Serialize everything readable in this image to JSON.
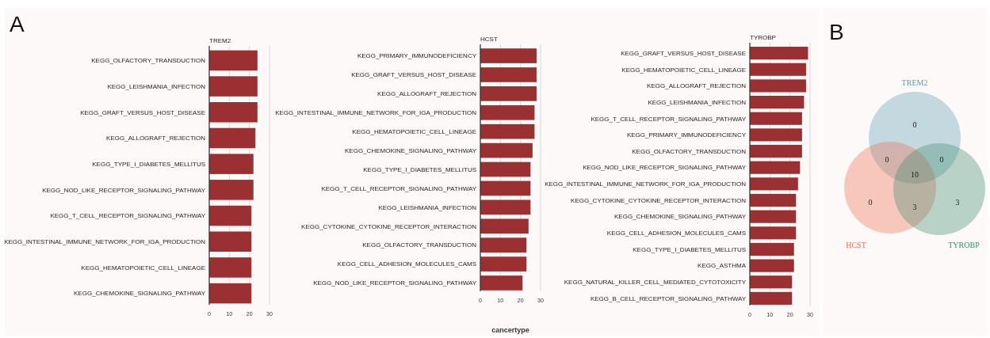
{
  "chart_data": [
    {
      "type": "bar",
      "orientation": "horizontal",
      "title": "TREM2",
      "annotations": [
        "A"
      ],
      "categories": [
        "KEGG_OLFACTORY_TRANSDUCTION",
        "KEGG_LEISHMANIA_INFECTION",
        "KEGG_GRAFT_VERSUS_HOST_DISEASE",
        "KEGG_ALLOGRAFT_REJECTION",
        "KEGG_TYPE_I_DIABETES_MELLITUS",
        "KEGG_NOD_LIKE_RECEPTOR_SIGNALING_PATHWAY",
        "KEGG_T_CELL_RECEPTOR_SIGNALING_PATHWAY",
        "KEGG_INTESTINAL_IMMUNE_NETWORK_FOR_IGA_PRODUCTION",
        "KEGG_HEMATOPOIETIC_CELL_LINEAGE",
        "KEGG_CHEMOKINE_SIGNALING_PATHWAY"
      ],
      "values": [
        24,
        24,
        24,
        23,
        22,
        22,
        21,
        21,
        21,
        21
      ],
      "color": "#9b3033",
      "xlim": [
        0,
        30
      ],
      "xticks": [
        0,
        10,
        20,
        30
      ],
      "grid": "x"
    },
    {
      "type": "bar",
      "orientation": "horizontal",
      "title": "HCST",
      "xlabel": "cancertype",
      "categories": [
        "KEGG_PRIMARY_IMMUNODEFICIENCY",
        "KEGG_GRAFT_VERSUS_HOST_DISEASE",
        "KEGG_ALLOGRAFT_REJECTION",
        "KEGG_INTESTINAL_IMMUNE_NETWORK_FOR_IGA_PRODUCTION",
        "KEGG_HEMATOPOIETIC_CELL_LINEAGE",
        "KEGG_CHEMOKINE_SIGNALING_PATHWAY",
        "KEGG_TYPE_I_DIABETES_MELLITUS",
        "KEGG_T_CELL_RECEPTOR_SIGNALING_PATHWAY",
        "KEGG_LEISHMANIA_INFECTION",
        "KEGG_CYTOKINE_CYTOKINE_RECEPTOR_INTERACTION",
        "KEGG_OLFACTORY_TRANSDUCTION",
        "KEGG_CELL_ADHESION_MOLECULES_CAMS",
        "KEGG_NOD_LIKE_RECEPTOR_SIGNALING_PATHWAY"
      ],
      "values": [
        28,
        28,
        28,
        27,
        27,
        26,
        25,
        25,
        25,
        24,
        23,
        23,
        21
      ],
      "color": "#9b3033",
      "xlim": [
        0,
        30
      ],
      "xticks": [
        0,
        10,
        20,
        30
      ],
      "grid": "x"
    },
    {
      "type": "bar",
      "orientation": "horizontal",
      "title": "TYROBP",
      "categories": [
        "KEGG_GRAFT_VERSUS_HOST_DISEASE",
        "KEGG_HEMATOPOIETIC_CELL_LINEAGE",
        "KEGG_ALLOGRAFT_REJECTION",
        "KEGG_LEISHMANIA_INFECTION",
        "KEGG_T_CELL_RECEPTOR_SIGNALING_PATHWAY",
        "KEGG_PRIMARY_IMMUNODEFICIENCY",
        "KEGG_OLFACTORY_TRANSDUCTION",
        "KEGG_NOD_LIKE_RECEPTOR_SIGNALING_PATHWAY",
        "KEGG_INTESTINAL_IMMUNE_NETWORK_FOR_IGA_PRODUCTION",
        "KEGG_CYTOKINE_CYTOKINE_RECEPTOR_INTERACTION",
        "KEGG_CHEMOKINE_SIGNALING_PATHWAY",
        "KEGG_CELL_ADHESION_MOLECULES_CAMS",
        "KEGG_TYPE_I_DIABETES_MELLITUS",
        "KEGG_ASTHMA",
        "KEGG_NATURAL_KILLER_CELL_MEDIATED_CYTOTOXICITY",
        "KEGG_B_CELL_RECEPTOR_SIGNALING_PATHWAY"
      ],
      "values": [
        29,
        28,
        28,
        27,
        26,
        26,
        26,
        25,
        24,
        23,
        23,
        23,
        22,
        22,
        21,
        21
      ],
      "color": "#9b3033",
      "xlim": [
        0,
        30
      ],
      "xticks": [
        0,
        10,
        20,
        30
      ],
      "grid": "x"
    },
    {
      "type": "other",
      "annotations": [
        "B",
        "0",
        "0",
        "3",
        "0",
        "0",
        "3",
        "10"
      ],
      "series": [
        {
          "name": "TREM2",
          "color": "#5a9fb2"
        },
        {
          "name": "HCST",
          "color": "#ee6a4e"
        },
        {
          "name": "TYROBP",
          "color": "#3d8a6c"
        }
      ]
    }
  ]
}
